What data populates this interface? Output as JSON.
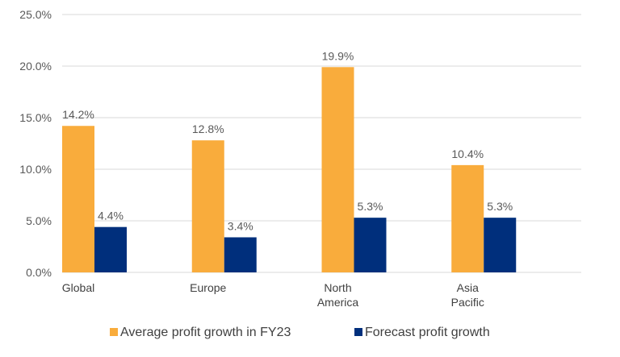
{
  "chart_data": {
    "type": "bar",
    "title": "",
    "xlabel": "",
    "ylabel": "",
    "ylim": [
      0,
      25
    ],
    "y_ticks": [
      0,
      5,
      10,
      15,
      20,
      25
    ],
    "y_tick_labels": [
      "0.0%",
      "5.0%",
      "10.0%",
      "15.0%",
      "20.0%",
      "25.0%"
    ],
    "categories": [
      [
        "Global"
      ],
      [
        "Europe"
      ],
      [
        "North",
        "America"
      ],
      [
        "Asia",
        "Pacific"
      ]
    ],
    "series": [
      {
        "name": "Average profit growth in FY23",
        "color": "#F9AC3C",
        "values": [
          14.2,
          12.8,
          19.9,
          10.4
        ],
        "labels": [
          "14.2%",
          "12.8%",
          "19.9%",
          "10.4%"
        ]
      },
      {
        "name": "Forecast profit growth",
        "color": "#002F7C",
        "values": [
          4.4,
          3.4,
          5.3,
          5.3
        ],
        "labels": [
          "4.4%",
          "3.4%",
          "5.3%",
          "5.3%"
        ]
      }
    ],
    "gridlines": true,
    "gridline_color": "#D9D9D9",
    "legend_position": "bottom"
  }
}
